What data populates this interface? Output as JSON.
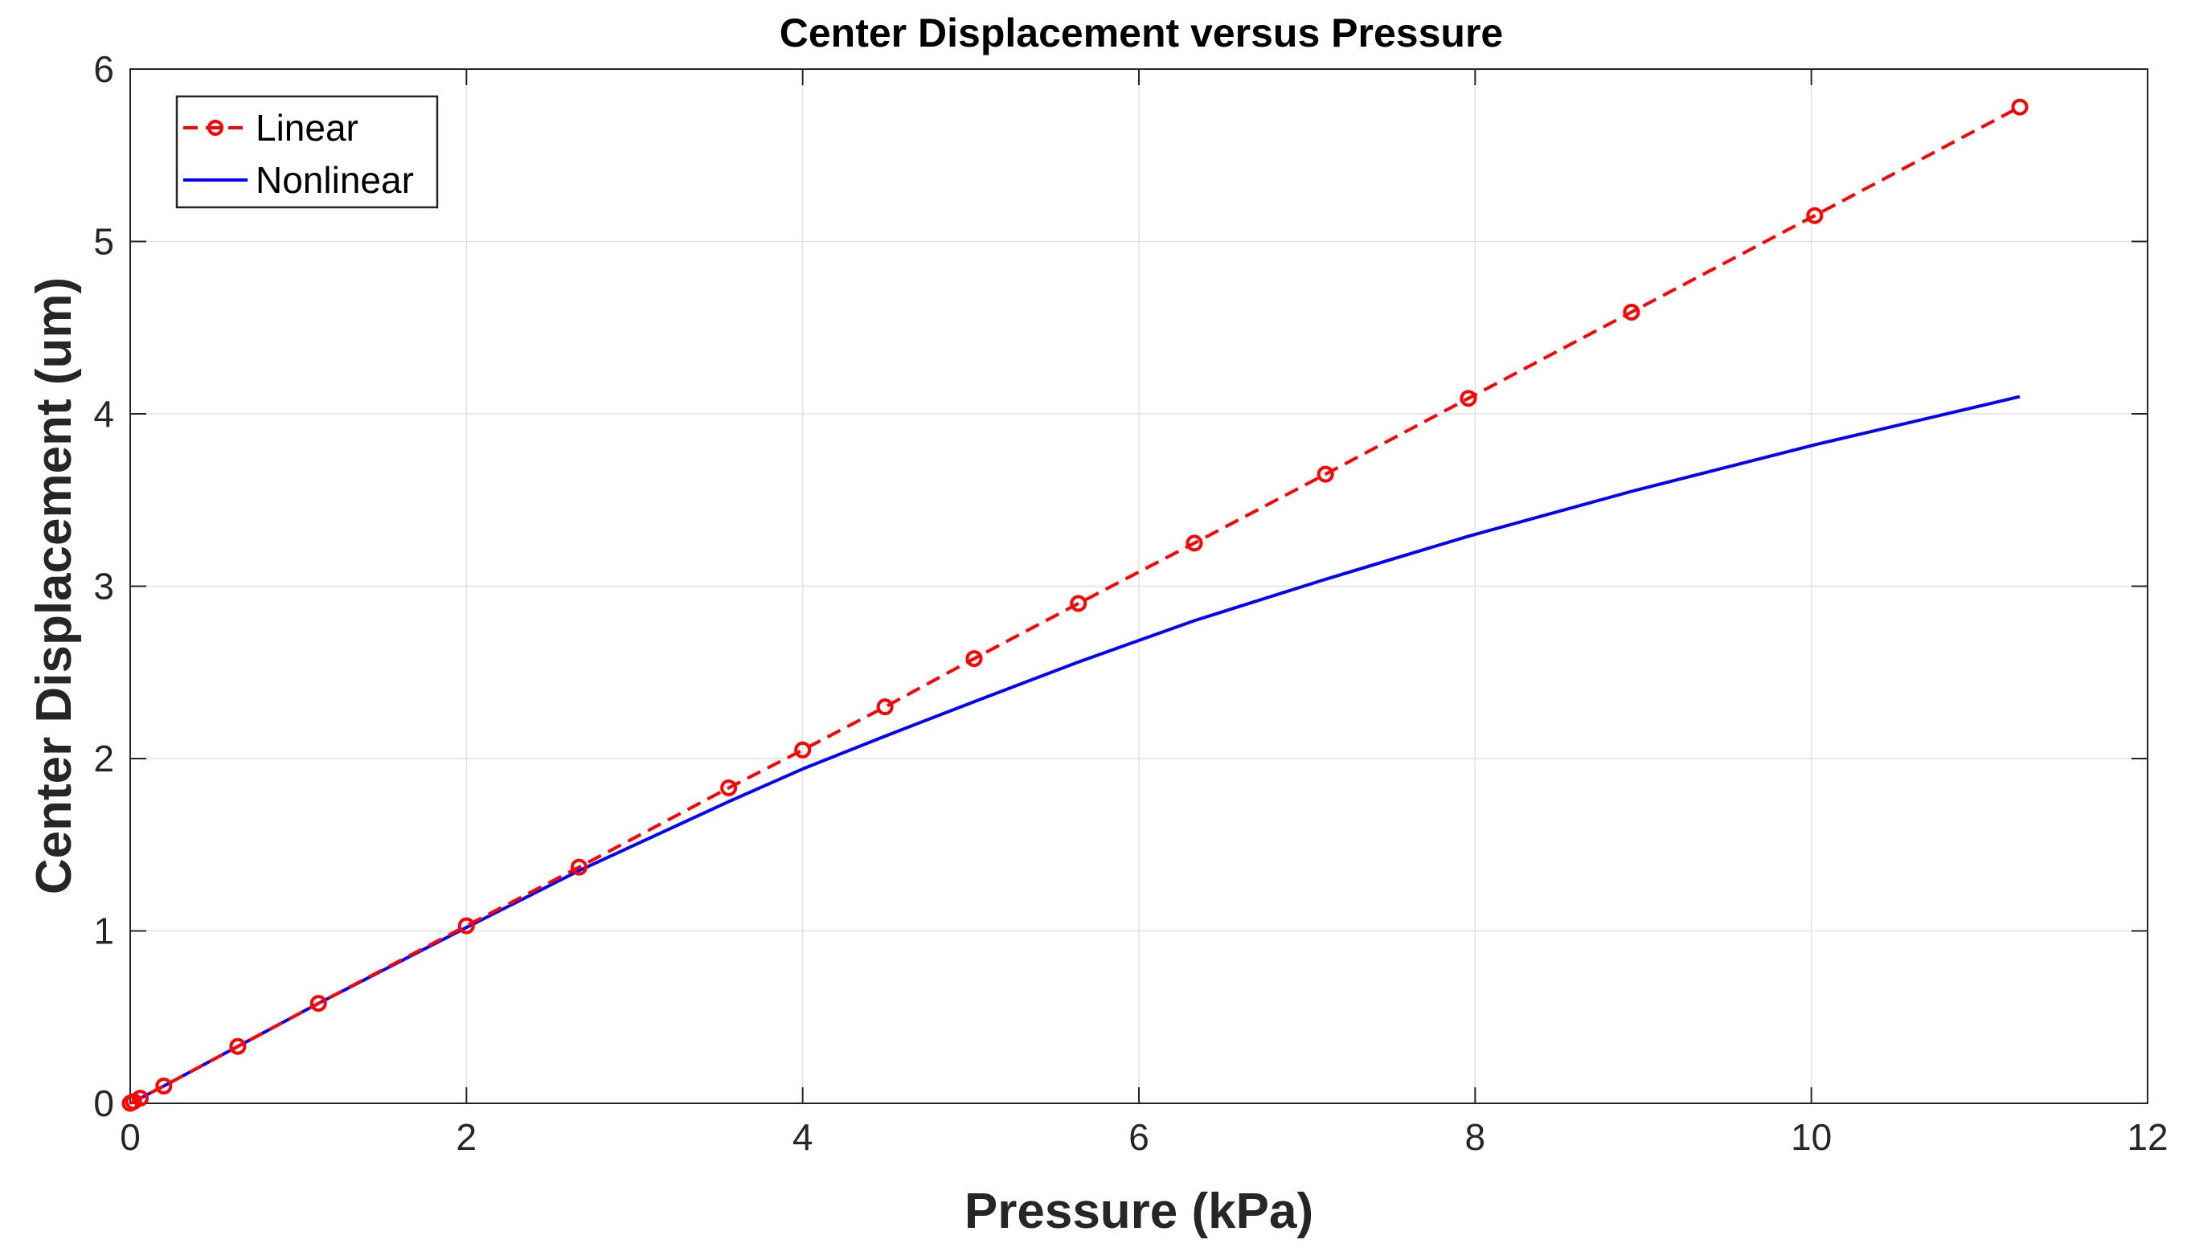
{
  "chart_data": {
    "type": "line",
    "title": "Center Displacement versus Pressure",
    "xlabel": "Pressure (kPa)",
    "ylabel": "Center Displacement (um)",
    "xlim": [
      0,
      12
    ],
    "ylim": [
      0,
      6
    ],
    "xticks": [
      0,
      2,
      4,
      6,
      8,
      10,
      12
    ],
    "yticks": [
      0,
      1,
      2,
      3,
      4,
      5,
      6
    ],
    "grid": true,
    "legend_position": "top-left",
    "series": [
      {
        "name": "Linear",
        "color": "#ff0000",
        "line_style": "dashed",
        "marker": "circle",
        "x": [
          0.0,
          0.02,
          0.06,
          0.2,
          0.64,
          1.12,
          2.0,
          2.67,
          3.56,
          4.0,
          4.49,
          5.02,
          5.64,
          6.33,
          7.11,
          7.96,
          8.93,
          10.02,
          11.24
        ],
        "y": [
          0.0,
          0.01,
          0.03,
          0.1,
          0.33,
          0.58,
          1.03,
          1.37,
          1.83,
          2.05,
          2.3,
          2.58,
          2.9,
          3.25,
          3.65,
          4.09,
          4.59,
          5.15,
          5.78
        ]
      },
      {
        "name": "Nonlinear",
        "color": "#0000ff",
        "line_style": "solid",
        "marker": "none",
        "x": [
          0.0,
          0.02,
          0.06,
          0.2,
          0.64,
          1.12,
          2.0,
          2.67,
          3.56,
          4.0,
          4.49,
          5.02,
          5.64,
          6.33,
          7.11,
          7.96,
          8.93,
          10.02,
          11.24
        ],
        "y": [
          0.0,
          0.01,
          0.03,
          0.1,
          0.33,
          0.58,
          1.02,
          1.35,
          1.75,
          1.94,
          2.13,
          2.33,
          2.56,
          2.8,
          3.04,
          3.29,
          3.55,
          3.82,
          4.1
        ]
      }
    ]
  }
}
